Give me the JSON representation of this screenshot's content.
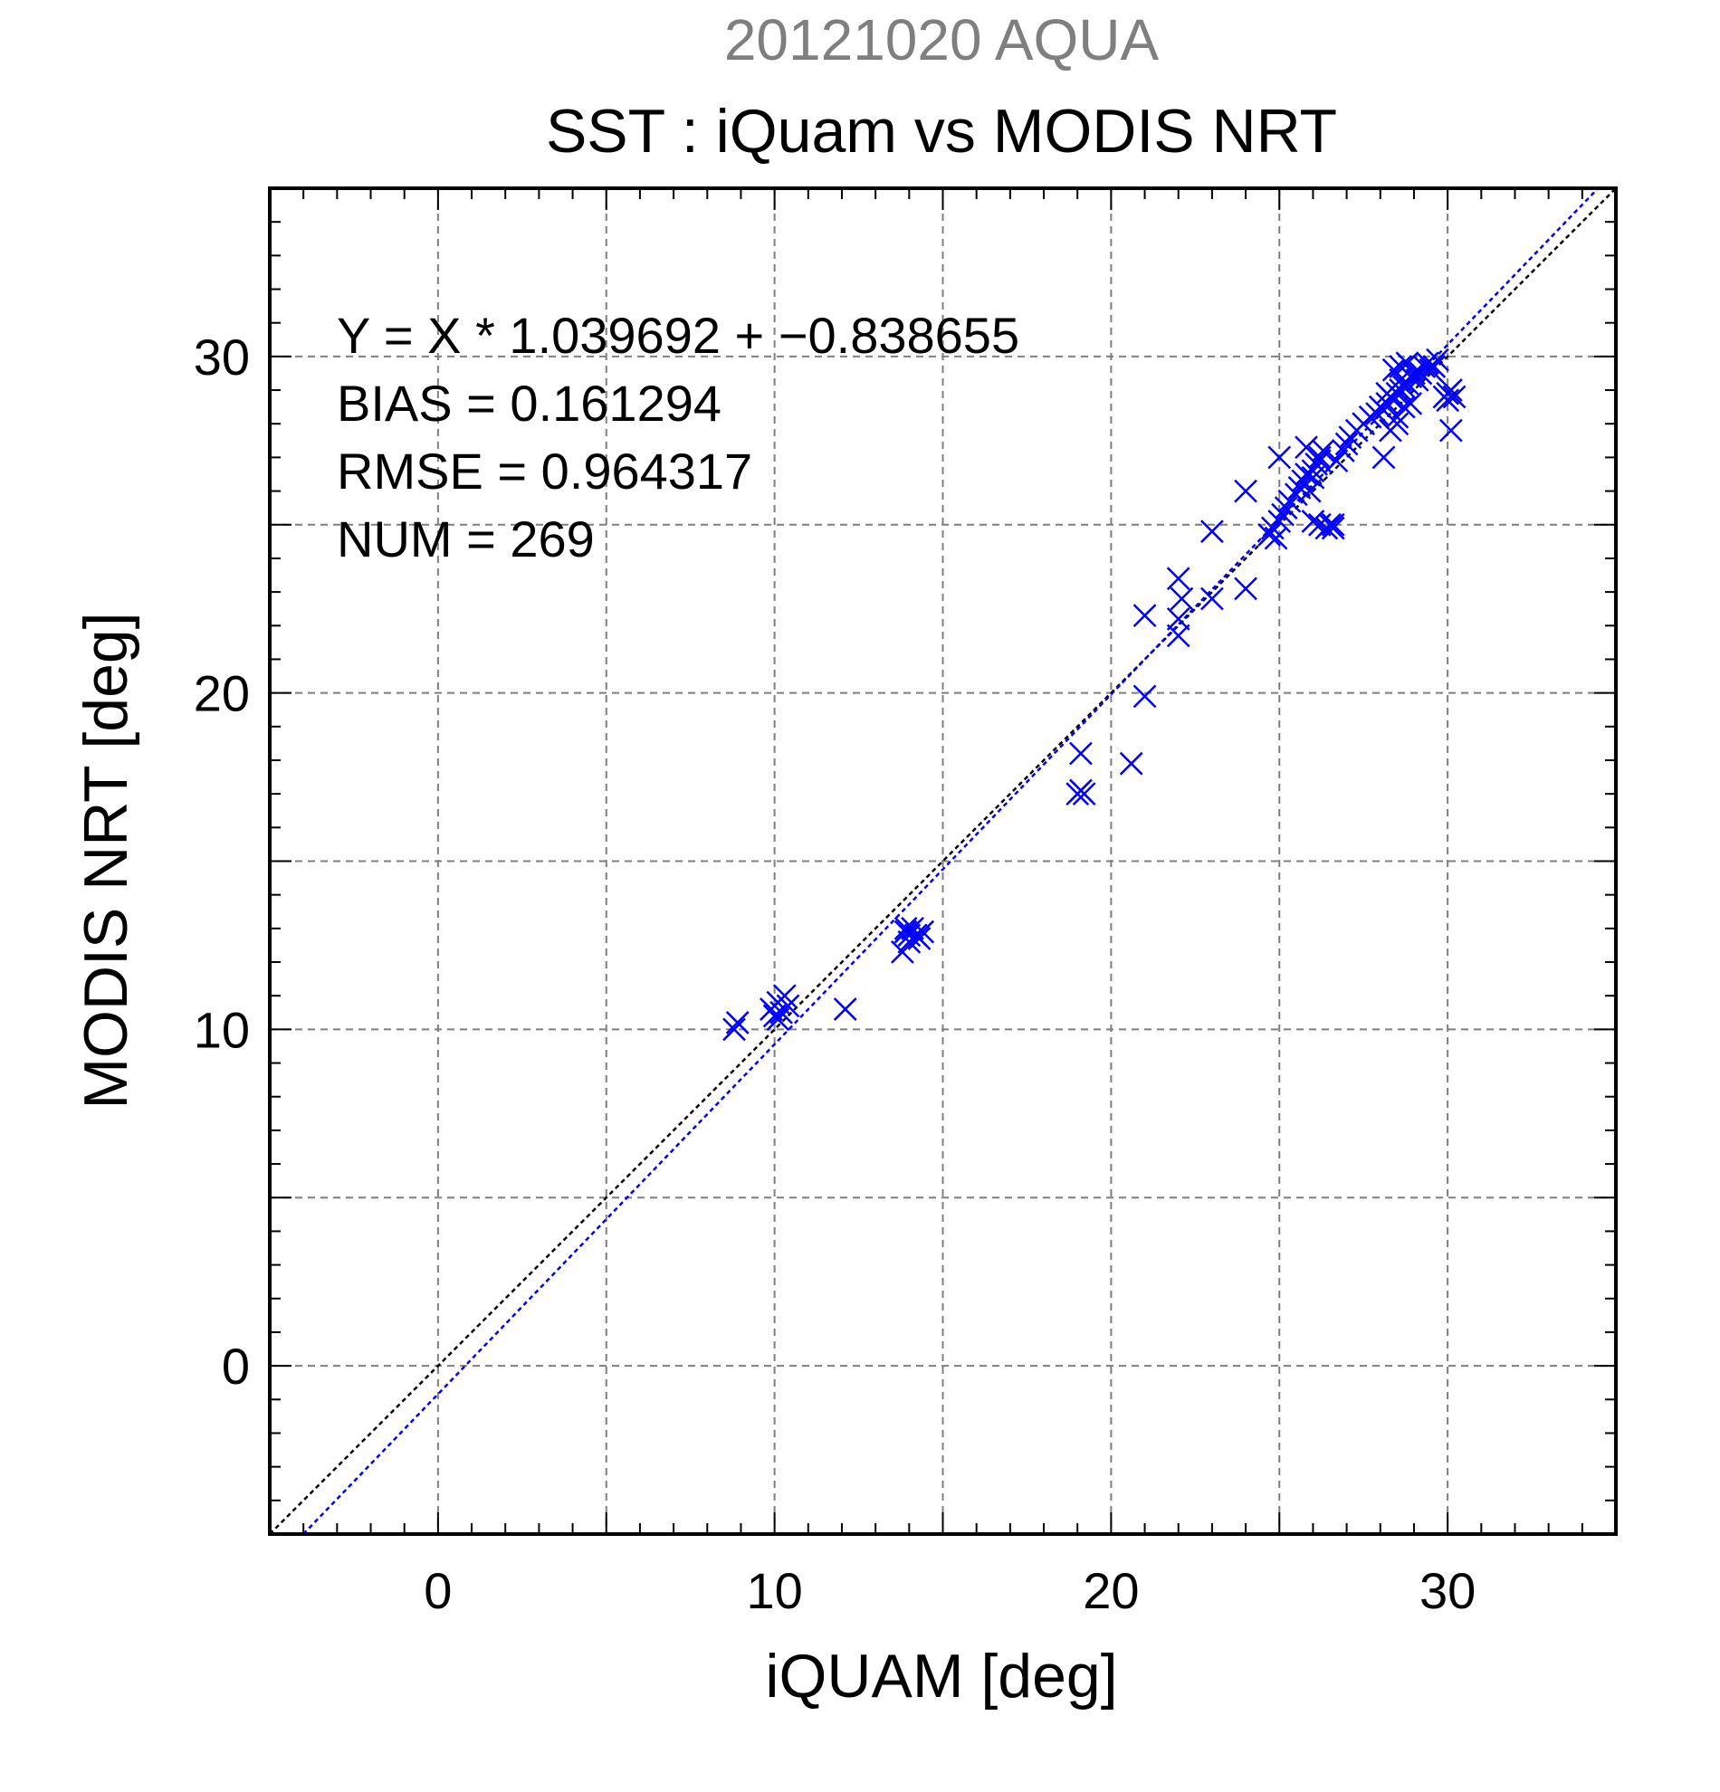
{
  "chart_data": {
    "type": "scatter",
    "date_title": "20121020 AQUA",
    "title": "SST : iQuam vs MODIS NRT",
    "xlabel": "iQUAM [deg]",
    "ylabel": "MODIS NRT [deg]",
    "xlim": [
      -5,
      35
    ],
    "ylim": [
      -5,
      35
    ],
    "xticks": [
      0,
      10,
      20,
      30
    ],
    "yticks": [
      0,
      10,
      20,
      30
    ],
    "xtick_labels": [
      "0",
      "10",
      "20",
      "30"
    ],
    "ytick_labels": [
      "0",
      "10",
      "20",
      "30"
    ],
    "grid": true,
    "stats": {
      "equation": "Y = X * 1.039692 + −0.838655",
      "bias": "BIAS = 0.161294",
      "rmse": "RMSE = 0.964317",
      "num": "NUM = 269"
    },
    "regression": {
      "slope": 1.039692,
      "intercept": -0.838655,
      "color": "#0000ff"
    },
    "identity_line": {
      "slope": 1,
      "intercept": 0,
      "color": "#000000"
    },
    "marker_color": "#0000ff",
    "series": [
      {
        "x": [
          8.8,
          8.9,
          9.9,
          10.0,
          10.1,
          10.2,
          10.3,
          10.4,
          10.1,
          12.1,
          13.8,
          13.9,
          14.0,
          14.1,
          14.2,
          14.3,
          14.4,
          14.0,
          13.9,
          19.0,
          19.1,
          19.2,
          19.1,
          20.6,
          21.0,
          21.0,
          22.0,
          22.0,
          22.1,
          22.0,
          23.0,
          23.0,
          24.0,
          24.0,
          24.7,
          24.8,
          24.9,
          25.0,
          25.1,
          25.2,
          25.3,
          25.0,
          25.5,
          25.6,
          25.7,
          25.8,
          25.9,
          26.0,
          26.1,
          26.2,
          26.3,
          25.8,
          26.0,
          26.2,
          26.5,
          26.6,
          26.0,
          26.2,
          26.4,
          26.6,
          26.7,
          26.9,
          27.0,
          27.1,
          27.3,
          27.5,
          27.7,
          27.9,
          28.0,
          28.1,
          28.2,
          28.3,
          28.4,
          28.5,
          28.6,
          28.7,
          28.1,
          28.3,
          28.5,
          28.7,
          28.8,
          28.9,
          29.0,
          29.1,
          28.4,
          28.6,
          28.8,
          29.2,
          29.3,
          29.4,
          29.5,
          29.6,
          29.7,
          28.5,
          28.9,
          28.2,
          28.6,
          29.9,
          30.0,
          30.1,
          30.2,
          30.1,
          30.0
        ],
        "y": [
          10.0,
          10.2,
          10.6,
          10.4,
          10.8,
          10.5,
          11.0,
          10.7,
          10.3,
          10.6,
          12.3,
          12.9,
          12.6,
          13.0,
          12.8,
          12.7,
          12.9,
          12.8,
          13.0,
          17.0,
          17.1,
          17.0,
          18.2,
          17.9,
          22.3,
          19.9,
          21.7,
          22.2,
          22.8,
          23.4,
          22.8,
          24.8,
          23.1,
          26.0,
          24.7,
          24.9,
          24.6,
          25.1,
          25.3,
          25.5,
          25.7,
          27.0,
          25.9,
          26.1,
          26.3,
          26.5,
          26.0,
          26.6,
          26.8,
          27.0,
          27.2,
          27.3,
          26.4,
          26.9,
          25.0,
          24.9,
          25.1,
          25.0,
          24.9,
          25.0,
          26.9,
          27.2,
          27.4,
          27.6,
          27.8,
          28.0,
          28.2,
          28.3,
          28.5,
          28.4,
          28.6,
          28.8,
          28.7,
          28.9,
          29.0,
          29.1,
          27.0,
          27.8,
          28.2,
          28.5,
          29.2,
          29.4,
          29.5,
          29.3,
          29.6,
          29.7,
          29.8,
          29.5,
          29.7,
          29.8,
          29.6,
          29.7,
          29.9,
          28.0,
          28.6,
          28.9,
          29.3,
          28.8,
          28.7,
          29.0,
          28.8,
          27.8,
          28.9
        ]
      }
    ]
  }
}
